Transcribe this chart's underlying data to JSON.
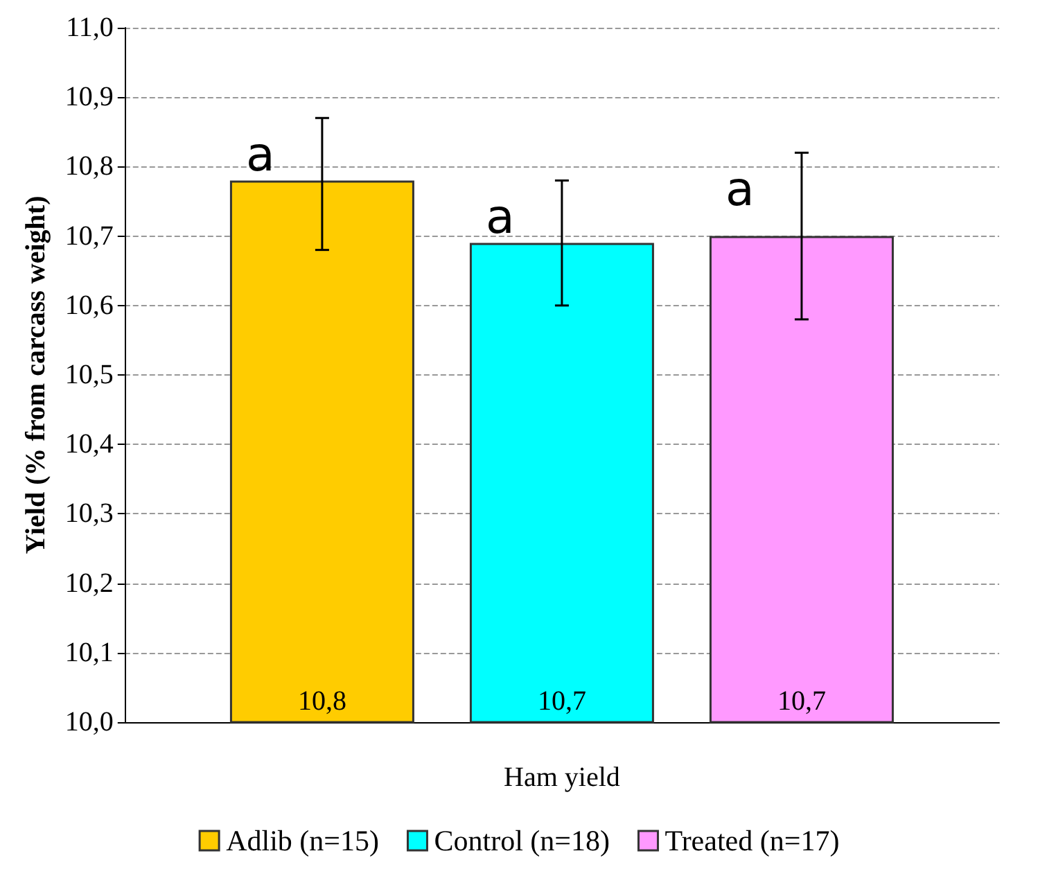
{
  "chart_data": {
    "type": "bar",
    "ylabel": "Yield (% from carcass weight)",
    "categories": [
      "Ham yield"
    ],
    "series": [
      {
        "name": "Adlib (n=15)",
        "color": "#ffcc00",
        "values": [
          10.78
        ],
        "errors": [
          [
            10.68,
            10.87
          ]
        ],
        "value_labels": [
          "10,8"
        ]
      },
      {
        "name": "Control (n=18)",
        "color": "#00ffff",
        "values": [
          10.69
        ],
        "errors": [
          [
            10.6,
            10.78
          ]
        ],
        "value_labels": [
          "10,7"
        ]
      },
      {
        "name": "Treated (n=17)",
        "color": "#ff99ff",
        "values": [
          10.7
        ],
        "errors": [
          [
            10.58,
            10.82
          ]
        ],
        "value_labels": [
          "10,7"
        ]
      }
    ],
    "annotations": [
      "a",
      "a",
      "a"
    ],
    "ylim": [
      10.0,
      11.0
    ],
    "yticks": [
      {
        "value": 10.0,
        "label": "10,0"
      },
      {
        "value": 10.1,
        "label": "10,1"
      },
      {
        "value": 10.2,
        "label": "10,2"
      },
      {
        "value": 10.3,
        "label": "10,3"
      },
      {
        "value": 10.4,
        "label": "10,4"
      },
      {
        "value": 10.5,
        "label": "10,5"
      },
      {
        "value": 10.6,
        "label": "10,6"
      },
      {
        "value": 10.7,
        "label": "10,7"
      },
      {
        "value": 10.8,
        "label": "10,8"
      },
      {
        "value": 10.9,
        "label": "10,9"
      },
      {
        "value": 11.0,
        "label": "11,0"
      }
    ],
    "grid": "y",
    "legend": "bottom"
  }
}
